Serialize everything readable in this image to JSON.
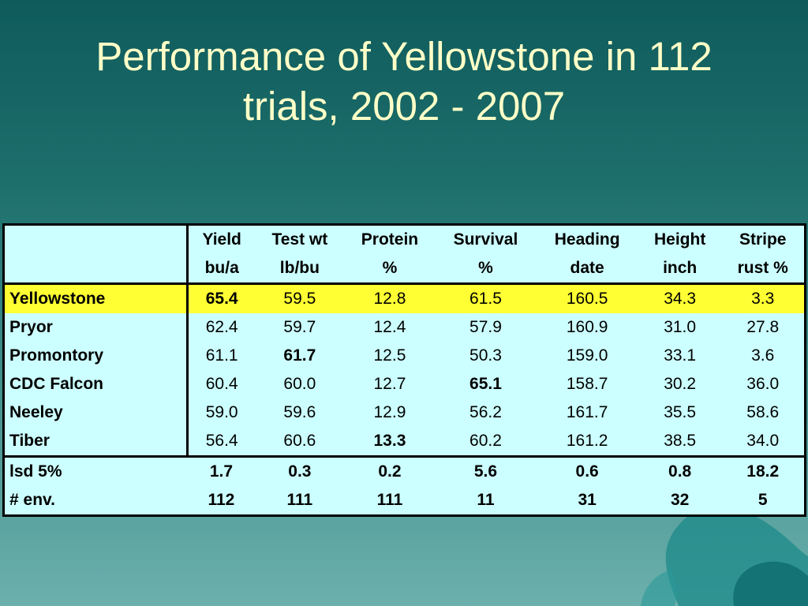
{
  "title": {
    "line1": "Performance of Yellowstone in 112",
    "line2": "trials, 2002 - 2007"
  },
  "table": {
    "headers": [
      {
        "top": "Yield",
        "unit": "bu/a"
      },
      {
        "top": "Test wt",
        "unit": "lb/bu"
      },
      {
        "top": "Protein",
        "unit": "%"
      },
      {
        "top": "Survival",
        "unit": "%"
      },
      {
        "top": "Heading",
        "unit": "date"
      },
      {
        "top": "Height",
        "unit": "inch"
      },
      {
        "top": "Stripe",
        "unit": "rust %"
      }
    ],
    "rows": [
      {
        "name": "Yellowstone",
        "values": [
          "65.4",
          "59.5",
          "12.8",
          "61.5",
          "160.5",
          "34.3",
          "3.3"
        ],
        "highlight": true,
        "bold": [
          0
        ]
      },
      {
        "name": "Pryor",
        "values": [
          "62.4",
          "59.7",
          "12.4",
          "57.9",
          "160.9",
          "31.0",
          "27.8"
        ],
        "highlight": false,
        "bold": []
      },
      {
        "name": "Promontory",
        "values": [
          "61.1",
          "61.7",
          "12.5",
          "50.3",
          "159.0",
          "33.1",
          "3.6"
        ],
        "highlight": false,
        "bold": [
          1
        ]
      },
      {
        "name": "CDC Falcon",
        "values": [
          "60.4",
          "60.0",
          "12.7",
          "65.1",
          "158.7",
          "30.2",
          "36.0"
        ],
        "highlight": false,
        "bold": [
          3
        ]
      },
      {
        "name": "Neeley",
        "values": [
          "59.0",
          "59.6",
          "12.9",
          "56.2",
          "161.7",
          "35.5",
          "58.6"
        ],
        "highlight": false,
        "bold": []
      },
      {
        "name": "Tiber",
        "values": [
          "56.4",
          "60.6",
          "13.3",
          "60.2",
          "161.2",
          "38.5",
          "34.0"
        ],
        "highlight": false,
        "bold": [
          2
        ]
      }
    ],
    "stats": [
      {
        "name": "lsd 5%",
        "values": [
          "1.7",
          "0.3",
          "0.2",
          "5.6",
          "0.6",
          "0.8",
          "18.2"
        ]
      },
      {
        "name": "# env.",
        "values": [
          "112",
          "111",
          "111",
          "11",
          "31",
          "32",
          "5"
        ]
      }
    ]
  },
  "colors": {
    "title": "#ffffc8",
    "table_bg": "#ccffff",
    "highlight": "#ffff33"
  }
}
